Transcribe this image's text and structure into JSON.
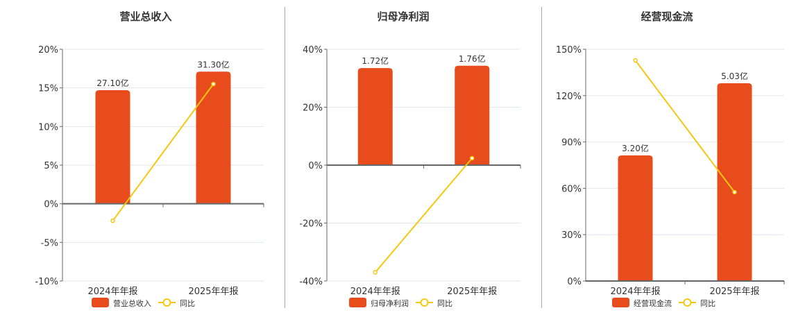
{
  "colors": {
    "bar": "#e84c1d",
    "line": "#f2c811",
    "axis": "#666666",
    "grid": "#e0e6f0",
    "text": "#333333",
    "title": "#333333",
    "divider": "#aaaaaa"
  },
  "chart_data": [
    {
      "type": "bar",
      "title": "营业总收入",
      "categories": [
        "2024年年报",
        "2025年年报"
      ],
      "series": [
        {
          "name": "营业总收入",
          "kind": "bar",
          "values": [
            14.7,
            17.1
          ],
          "labels": [
            "27.10亿",
            "31.30亿"
          ]
        },
        {
          "name": "同比",
          "kind": "line",
          "values": [
            -2.2,
            15.5
          ]
        }
      ],
      "bar_amounts": [
        "27.10亿",
        "31.30亿"
      ],
      "yticks": [
        "20%",
        "15%",
        "10%",
        "5%",
        "0%",
        "-5%",
        "-10%"
      ],
      "ylim": [
        -10,
        20
      ],
      "xlabel": "",
      "ylabel": "",
      "grid": true,
      "legend": {
        "position": "bottom",
        "entries": [
          "营业总收入",
          "同比"
        ]
      }
    },
    {
      "type": "bar",
      "title": "归母净利润",
      "categories": [
        "2024年年报",
        "2025年年报"
      ],
      "series": [
        {
          "name": "归母净利润",
          "kind": "bar",
          "values": [
            33.5,
            34.3
          ],
          "labels": [
            "1.72亿",
            "1.76亿"
          ]
        },
        {
          "name": "同比",
          "kind": "line",
          "values": [
            -37.0,
            2.4
          ]
        }
      ],
      "bar_amounts": [
        "1.72亿",
        "1.76亿"
      ],
      "yticks": [
        "40%",
        "20%",
        "0%",
        "-20%",
        "-40%"
      ],
      "ylim": [
        -40,
        40
      ],
      "xlabel": "",
      "ylabel": "",
      "grid": true,
      "legend": {
        "position": "bottom",
        "entries": [
          "归母净利润",
          "同比"
        ]
      }
    },
    {
      "type": "bar",
      "title": "经营现金流",
      "categories": [
        "2024年年报",
        "2025年年报"
      ],
      "series": [
        {
          "name": "经营现金流",
          "kind": "bar",
          "values": [
            81.3,
            128.0
          ],
          "labels": [
            "3.20亿",
            "5.03亿"
          ]
        },
        {
          "name": "同比",
          "kind": "line",
          "values": [
            142.8,
            57.5
          ]
        }
      ],
      "bar_amounts": [
        "3.20亿",
        "5.03亿"
      ],
      "yticks": [
        "150%",
        "120%",
        "90%",
        "60%",
        "30%",
        "0%"
      ],
      "ylim": [
        0,
        150
      ],
      "xlabel": "",
      "ylabel": "",
      "grid": true,
      "legend": {
        "position": "bottom",
        "entries": [
          "经营现金流",
          "同比"
        ]
      }
    }
  ]
}
